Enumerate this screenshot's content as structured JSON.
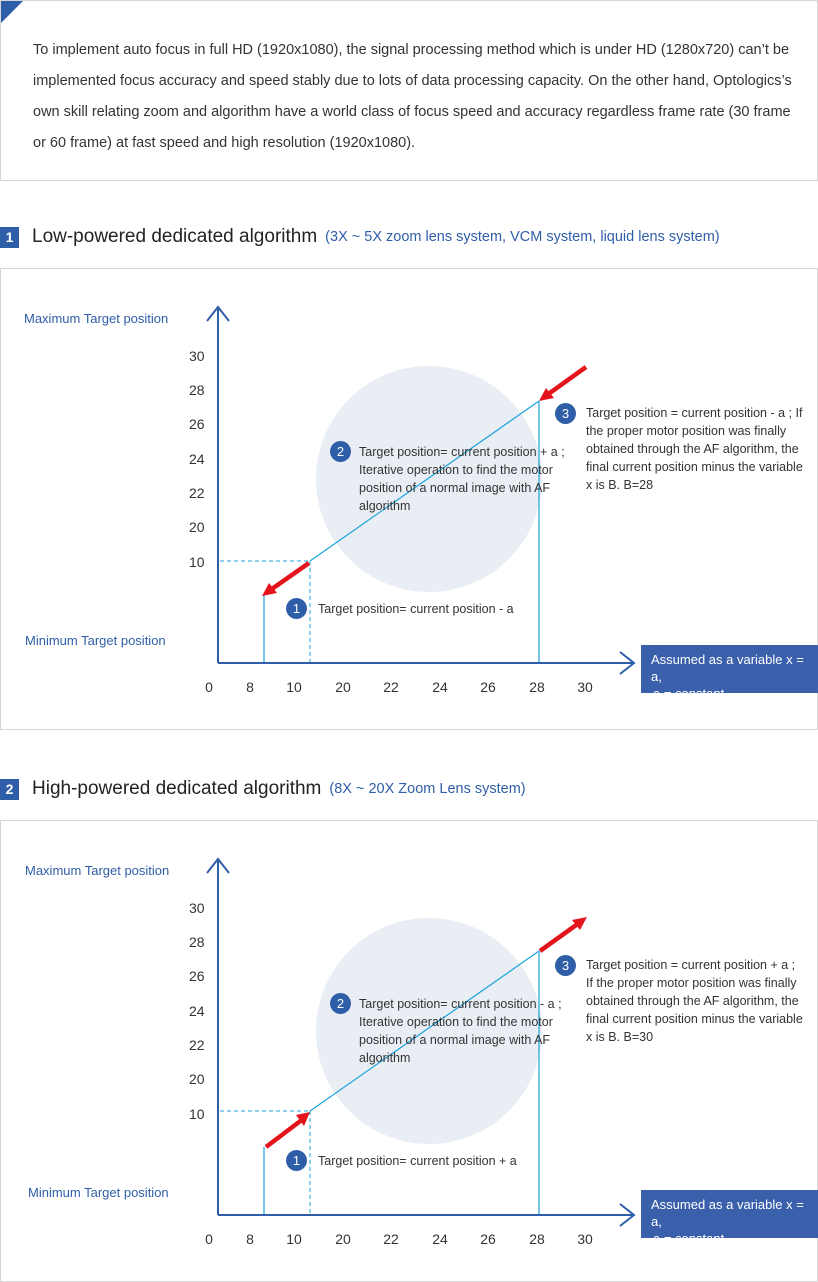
{
  "intro": {
    "text": "To implement auto focus in full HD (1920x1080), the signal processing method which is under HD (1280x720) can’t be implemented focus accuracy and speed stably due to lots of data processing capacity. On the other hand, Optologics’s own skill relating zoom and algorithm have a world class of focus speed and accuracy regardless frame rate (30 frame or 60 frame) at fast speed and high resolution (1920x1080)."
  },
  "colors": {
    "accent": "#2f5ea8",
    "arrow": "#e3141c",
    "line": "#1aa3dc",
    "circle": "#e9edf4"
  },
  "sections": [
    {
      "number": "1",
      "title": "Low-powered dedicated algorithm",
      "subtitle": "(3X ~ 5X zoom lens system, VCM system, liquid lens system)",
      "y_max_label": "Maximum Target position",
      "y_min_label": "Minimum Target position",
      "y_ticks": [
        "30",
        "28",
        "26",
        "24",
        "22",
        "20",
        "10"
      ],
      "x_ticks": [
        "0",
        "8",
        "10",
        "20",
        "22",
        "24",
        "26",
        "28",
        "30"
      ],
      "x_box": [
        "Assumed as a variable x = a,",
        "a = constant"
      ],
      "steps": [
        {
          "badge": "1",
          "text": "Target position= current position - a"
        },
        {
          "badge": "2",
          "text": "Target position= current position + a ; Iterative operation to find the motor position of a normal image with AF algorithm"
        },
        {
          "badge": "3",
          "text": "Target position = current position - a ; If the proper motor position was finally obtained through the AF algorithm, the final current position minus the variable x is B. B=28"
        }
      ]
    },
    {
      "number": "2",
      "title": "High-powered dedicated algorithm",
      "subtitle": "(8X ~ 20X Zoom Lens system)",
      "y_max_label": "Maximum Target position",
      "y_min_label": "Minimum Target position",
      "y_ticks": [
        "30",
        "28",
        "26",
        "24",
        "22",
        "20",
        "10"
      ],
      "x_ticks": [
        "0",
        "8",
        "10",
        "20",
        "22",
        "24",
        "26",
        "28",
        "30"
      ],
      "x_box": [
        "Assumed as a variable x = a,",
        "a = constant"
      ],
      "steps": [
        {
          "badge": "1",
          "text": "Target position= current position + a"
        },
        {
          "badge": "2",
          "text": "Target position= current position - a ; Iterative operation to find the motor position of a normal image with AF algorithm"
        },
        {
          "badge": "3",
          "text": "Target position = current position + a ; If the proper motor position was finally obtained through the AF algorithm, the final current position minus the variable x is B. B=30"
        }
      ]
    }
  ]
}
